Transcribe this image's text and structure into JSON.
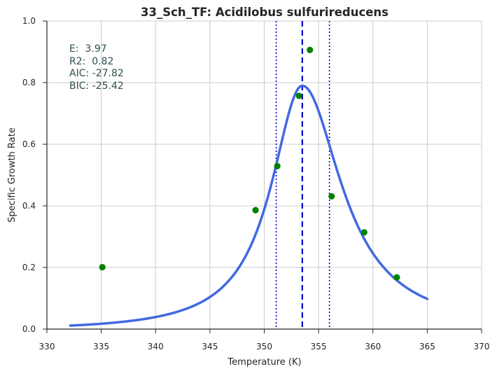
{
  "chart_data": {
    "type": "scatter",
    "title": "33_Sch_TF: Acidilobus sulfurireducens",
    "xlabel": "Temperature (K)",
    "ylabel": "Specific Growth Rate",
    "xlim": [
      330,
      370
    ],
    "ylim": [
      0.0,
      1.0
    ],
    "xticks": [
      330,
      335,
      340,
      345,
      350,
      355,
      360,
      365,
      370
    ],
    "yticks": [
      0.0,
      0.2,
      0.4,
      0.6,
      0.8,
      1.0
    ],
    "xtick_labels": [
      "330",
      "335",
      "340",
      "345",
      "350",
      "355",
      "360",
      "365",
      "370"
    ],
    "ytick_labels": [
      "0.0",
      "0.2",
      "0.4",
      "0.6",
      "0.8",
      "1.0"
    ],
    "grid": true,
    "annotation": [
      "E:  3.97",
      "R2:  0.82",
      "AIC: -27.82",
      "BIC: -25.42"
    ],
    "observed_points": {
      "color": "#008000",
      "x": [
        335.1,
        349.2,
        351.2,
        353.2,
        354.2,
        356.2,
        359.2,
        362.2
      ],
      "y": [
        0.201,
        0.386,
        0.529,
        0.757,
        0.906,
        0.431,
        0.314,
        0.168
      ]
    },
    "fitted_curve": {
      "color": "#4169E1",
      "x_start": 332.15,
      "x_end": 365.0,
      "peak_x": 353.5,
      "peak_y": 0.79,
      "left_half_width": 3.5,
      "right_half_width": 4.4,
      "sample_x": [
        332.15,
        340,
        345,
        347.5,
        350,
        352,
        353.5,
        355,
        357,
        360,
        362,
        365
      ],
      "sample_y": [
        0.002,
        0.012,
        0.06,
        0.165,
        0.395,
        0.68,
        0.79,
        0.72,
        0.48,
        0.23,
        0.125,
        0.053
      ]
    },
    "reference_lines": [
      {
        "x": 351.1,
        "style": "dotted",
        "color": "#0000CD"
      },
      {
        "x": 353.5,
        "style": "dashed",
        "color": "#0000CD"
      },
      {
        "x": 356.0,
        "style": "dotted",
        "color": "#0000CD"
      }
    ]
  }
}
